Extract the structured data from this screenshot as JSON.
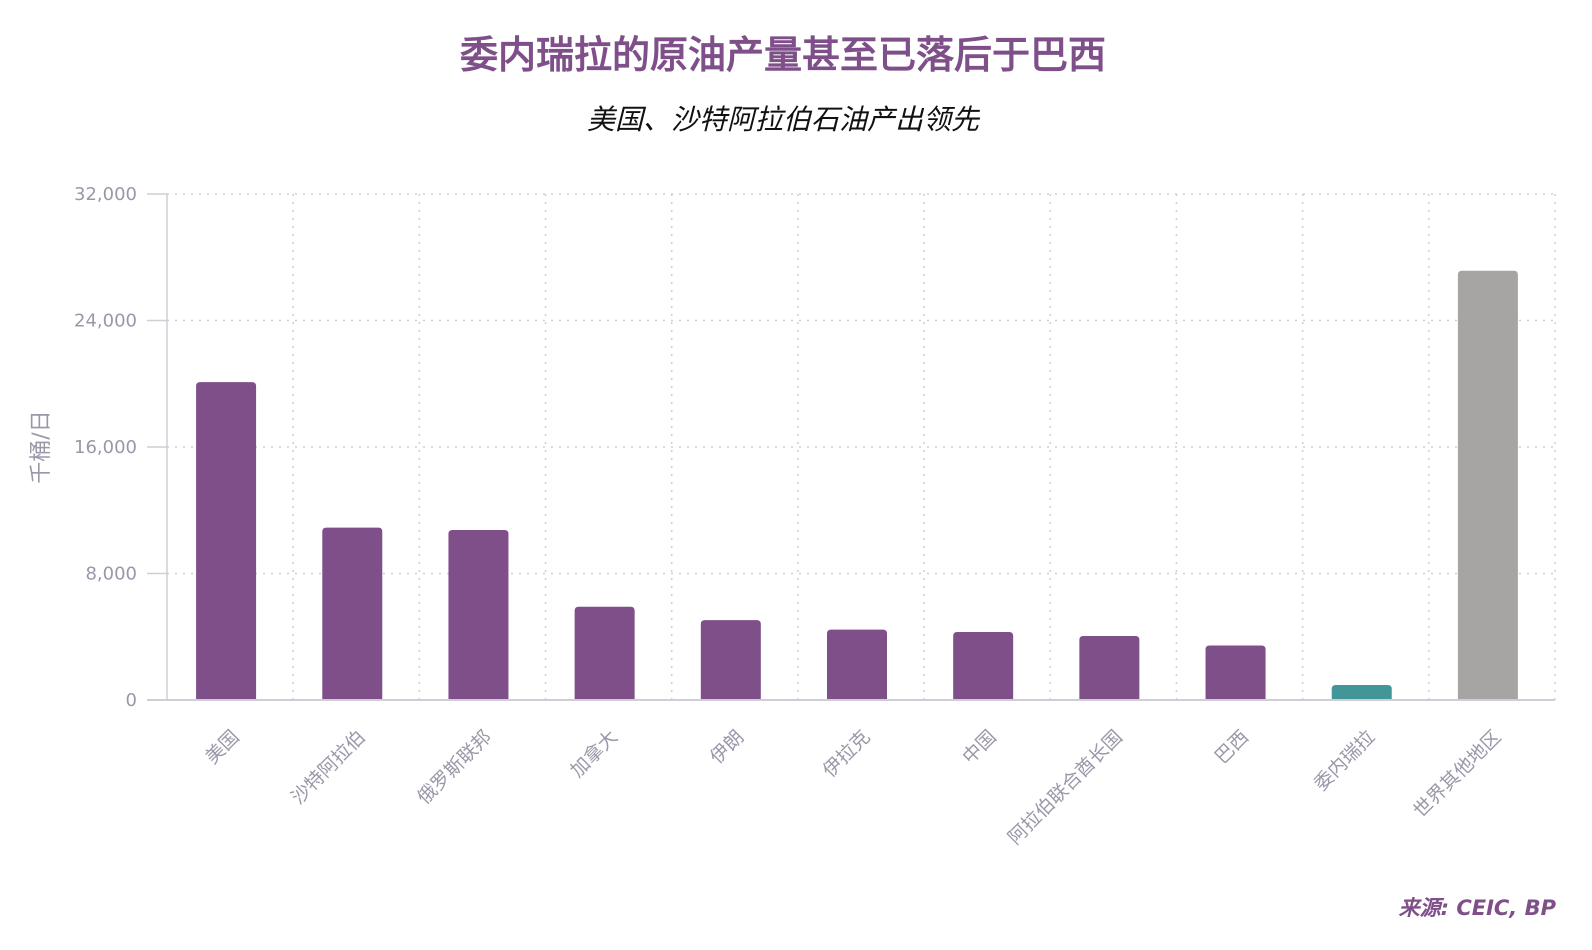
{
  "chart_data": {
    "type": "bar",
    "title": "委内瑞拉的原油产量甚至已落后于巴西",
    "subtitle": "美国、沙特阿拉伯石油产出领先",
    "xlabel": "",
    "ylabel": "千桶/日",
    "ylim": [
      0,
      32000
    ],
    "yticks": [
      0,
      8000,
      16000,
      24000,
      32000
    ],
    "ytick_labels": [
      "0",
      "8,000",
      "16,000",
      "24,000",
      "32,000"
    ],
    "grid": true,
    "categories": [
      "美国",
      "沙特阿拉伯",
      "俄罗斯联邦",
      "加拿大",
      "伊朗",
      "伊拉克",
      "中国",
      "阿拉伯联合酋长国",
      "巴西",
      "委内瑞拉",
      "世界其他地区"
    ],
    "values": [
      20100,
      10900,
      10750,
      5900,
      5050,
      4450,
      4300,
      4050,
      3450,
      950,
      27150
    ],
    "colors": [
      "#7f4f8a",
      "#7f4f8a",
      "#7f4f8a",
      "#7f4f8a",
      "#7f4f8a",
      "#7f4f8a",
      "#7f4f8a",
      "#7f4f8a",
      "#7f4f8a",
      "#429698",
      "#a6a5a4"
    ],
    "source": "来源: CEIC, BP"
  }
}
